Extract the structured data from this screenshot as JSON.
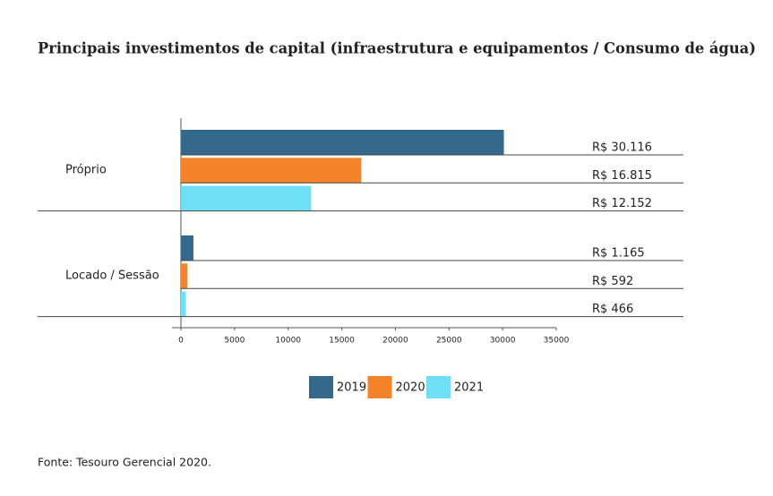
{
  "chart_data": {
    "type": "bar",
    "orientation": "horizontal",
    "title": "Principais investimentos de capital (infraestrutura e equipamentos / Consumo de água)",
    "categories": [
      "Próprio",
      "Locado / Sessão"
    ],
    "series": [
      {
        "name": "2019",
        "color": "#34698c",
        "values": [
          30116,
          1165
        ],
        "value_labels": [
          "R$ 30.116",
          "R$ 1.165"
        ]
      },
      {
        "name": "2020",
        "color": "#f5832a",
        "values": [
          16815,
          592
        ],
        "value_labels": [
          "R$ 16.815",
          "R$ 592"
        ]
      },
      {
        "name": "2021",
        "color": "#6de0f5",
        "values": [
          12152,
          466
        ],
        "value_labels": [
          "R$ 12.152",
          "R$ 466"
        ]
      }
    ],
    "xlim": [
      0,
      35000
    ],
    "xticks": [
      0,
      5000,
      10000,
      15000,
      20000,
      25000,
      30000,
      35000
    ],
    "grid": false,
    "legend": "bottom",
    "source": "Fonte: Tesouro Gerencial 2020."
  }
}
